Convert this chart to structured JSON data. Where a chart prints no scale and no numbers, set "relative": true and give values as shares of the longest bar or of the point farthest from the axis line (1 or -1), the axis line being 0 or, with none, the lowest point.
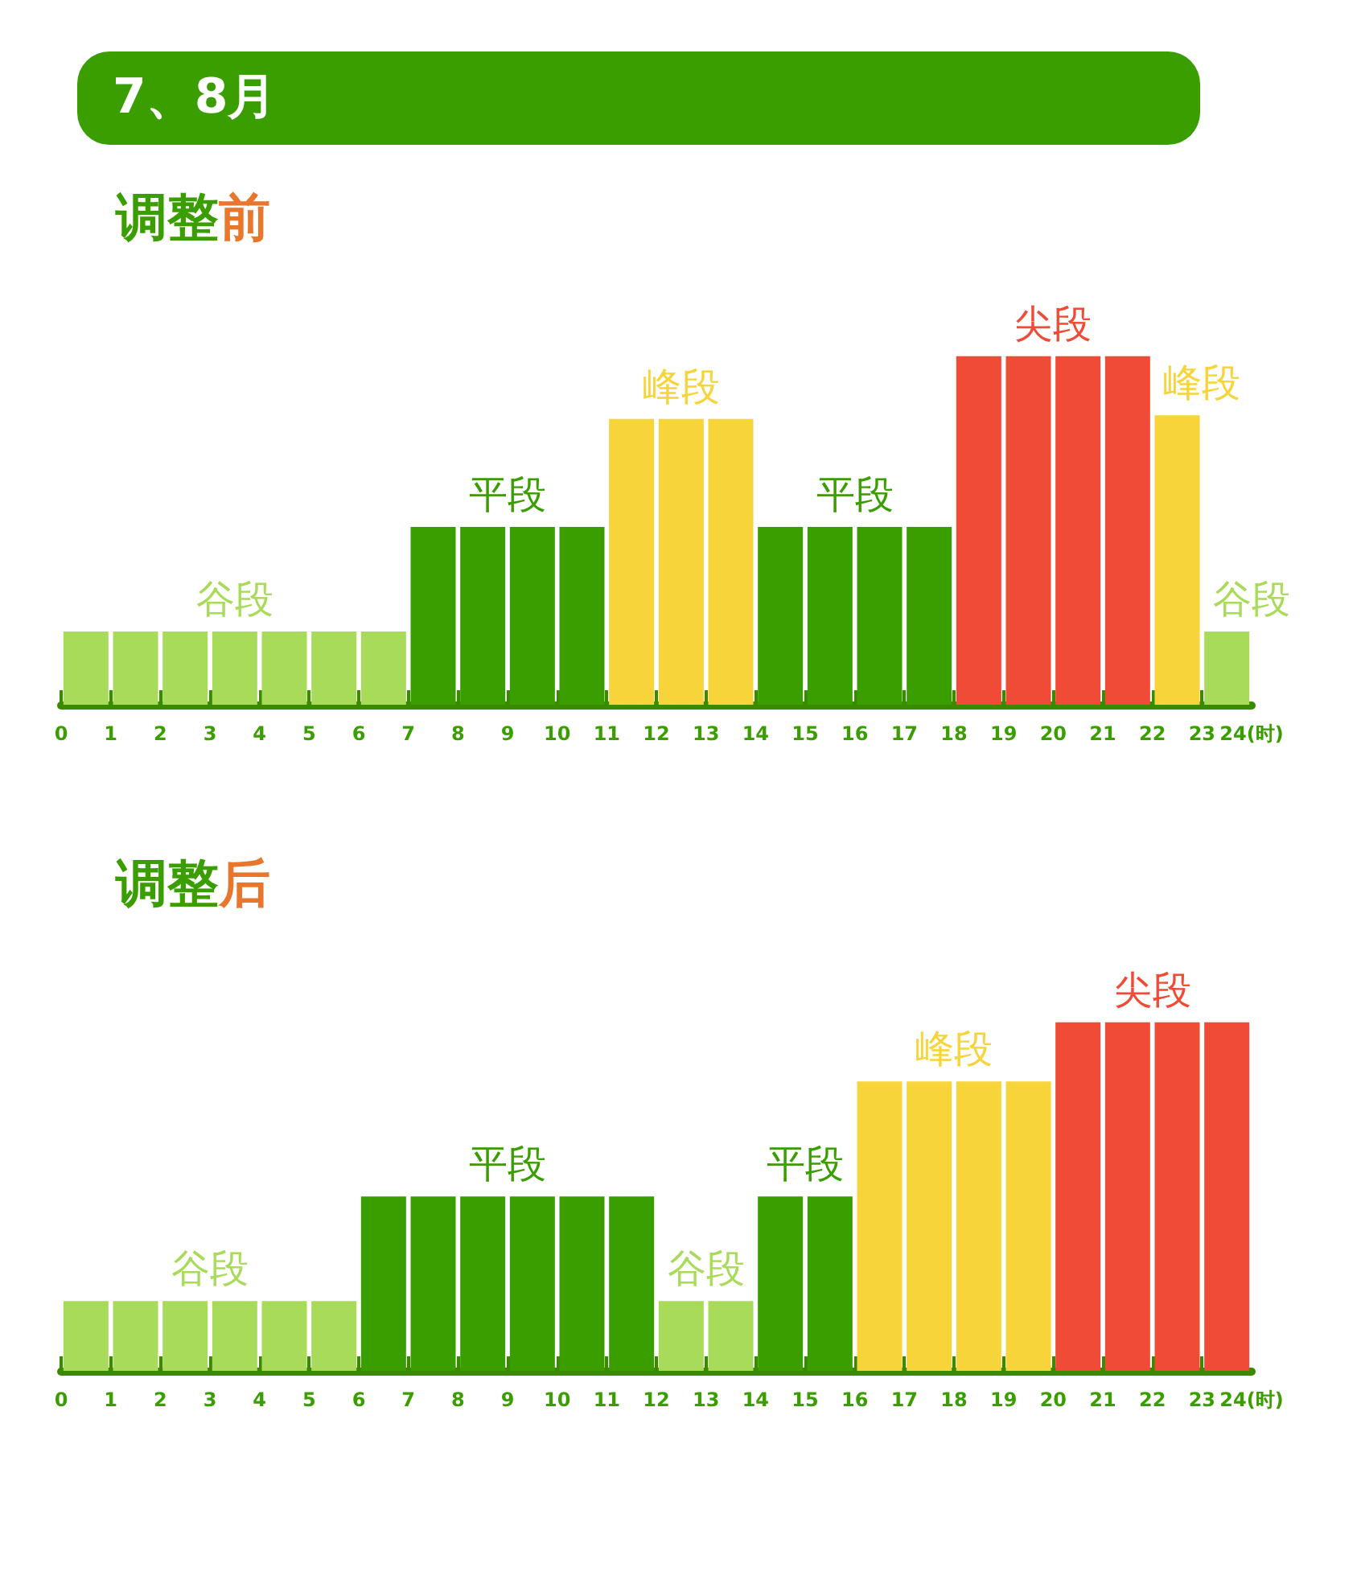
{
  "chart_data": [
    {
      "type": "bar",
      "title": "7、8月",
      "subtitle": "调整前",
      "relative": true,
      "x": [
        0.5,
        1.5,
        2.5,
        3.5,
        4.5,
        5.5,
        6.5,
        7.5,
        8.5,
        9.5,
        10.5,
        11.5,
        12.5,
        13.5,
        14.5,
        15.5,
        16.5,
        17.5,
        18.5,
        19.5,
        20.5,
        21.5,
        22.5,
        23.5
      ],
      "values": [
        0.21,
        0.21,
        0.21,
        0.21,
        0.21,
        0.21,
        0.21,
        0.51,
        0.51,
        0.51,
        0.51,
        0.82,
        0.82,
        0.82,
        0.51,
        0.51,
        0.51,
        0.51,
        1,
        1,
        1,
        1,
        0.83,
        0.21
      ],
      "colors": [
        "#a9db5b",
        "#a9db5b",
        "#a9db5b",
        "#a9db5b",
        "#a9db5b",
        "#a9db5b",
        "#a9db5b",
        "#3a9e00",
        "#3a9e00",
        "#3a9e00",
        "#3a9e00",
        "#f7d43a",
        "#f7d43a",
        "#f7d43a",
        "#3a9e00",
        "#3a9e00",
        "#3a9e00",
        "#3a9e00",
        "#ef4b36",
        "#ef4b36",
        "#ef4b36",
        "#ef4b36",
        "#f7d43a",
        "#a9db5b"
      ],
      "annotations": [
        {
          "text": "谷段",
          "x": 3.5,
          "y": 0.21
        },
        {
          "text": "平段",
          "x": 9,
          "y": 0.51
        },
        {
          "text": "峰段",
          "x": 12.5,
          "y": 0.82
        },
        {
          "text": "平段",
          "x": 16,
          "y": 0.51
        },
        {
          "text": "尖段",
          "x": 20,
          "y": 1
        },
        {
          "text": "峰段",
          "x": 23,
          "y": 0.83
        },
        {
          "text": "谷段",
          "x": 24,
          "y": 0.21
        }
      ],
      "xlim": [
        0,
        24
      ],
      "xticks": [
        0,
        1,
        2,
        3,
        4,
        5,
        6,
        7,
        8,
        9,
        10,
        11,
        12,
        13,
        14,
        15,
        16,
        17,
        18,
        19,
        20,
        21,
        22,
        23,
        {
          "value": 24,
          "label": "24(时)"
        }
      ],
      "grid": false
    },
    {
      "type": "bar",
      "subtitle": "调整后",
      "relative": true,
      "x": [
        0.5,
        1.5,
        2.5,
        3.5,
        4.5,
        5.5,
        6.5,
        7.5,
        8.5,
        9.5,
        10.5,
        11.5,
        12.5,
        13.5,
        14.5,
        15.5,
        16.5,
        17.5,
        18.5,
        19.5,
        20.5,
        21.5,
        22.5,
        23.5
      ],
      "values": [
        0.2,
        0.2,
        0.2,
        0.2,
        0.2,
        0.2,
        0.5,
        0.5,
        0.5,
        0.5,
        0.5,
        0.5,
        0.2,
        0.2,
        0.5,
        0.5,
        0.83,
        0.83,
        0.83,
        0.83,
        1,
        1,
        1,
        1
      ],
      "colors": [
        "#a9db5b",
        "#a9db5b",
        "#a9db5b",
        "#a9db5b",
        "#a9db5b",
        "#a9db5b",
        "#3a9e00",
        "#3a9e00",
        "#3a9e00",
        "#3a9e00",
        "#3a9e00",
        "#3a9e00",
        "#a9db5b",
        "#a9db5b",
        "#3a9e00",
        "#3a9e00",
        "#f7d43a",
        "#f7d43a",
        "#f7d43a",
        "#f7d43a",
        "#ef4b36",
        "#ef4b36",
        "#ef4b36",
        "#ef4b36"
      ],
      "annotations": [
        {
          "text": "谷段",
          "x": 3,
          "y": 0.2
        },
        {
          "text": "平段",
          "x": 9,
          "y": 0.5
        },
        {
          "text": "谷段",
          "x": 13,
          "y": 0.2
        },
        {
          "text": "平段",
          "x": 15,
          "y": 0.5
        },
        {
          "text": "峰段",
          "x": 18,
          "y": 0.83
        },
        {
          "text": "尖段",
          "x": 22,
          "y": 1
        }
      ],
      "xlim": [
        0,
        24
      ],
      "xticks": [
        0,
        1,
        2,
        3,
        4,
        5,
        6,
        7,
        8,
        9,
        10,
        11,
        12,
        13,
        14,
        15,
        16,
        17,
        18,
        19,
        20,
        21,
        22,
        23,
        {
          "value": 24,
          "label": "24(时)"
        }
      ],
      "grid": false
    }
  ]
}
